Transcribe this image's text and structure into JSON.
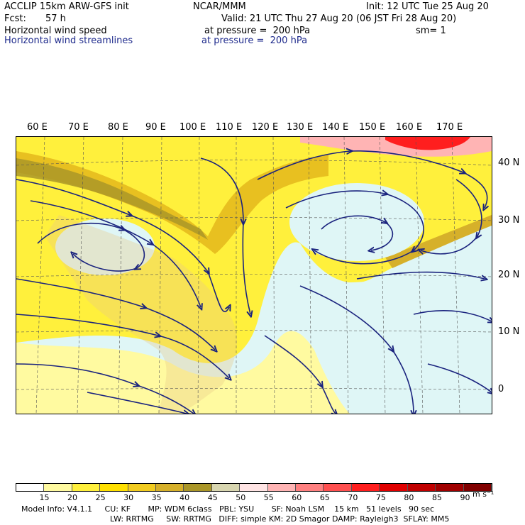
{
  "header": {
    "model": "ACCLIP 15km ARW-GFS init",
    "org": "NCAR/MMM",
    "init": "Init: 12 UTC Tue 25 Aug 20",
    "fcst_label": "Fcst:",
    "fcst_value": "57 h",
    "valid": "Valid: 21 UTC Thu 27 Aug 20 (06 JST Fri 28 Aug 20)",
    "field1_name": "Horizontal wind speed",
    "field1_level": "at pressure =  200 hPa",
    "field1_sm": "sm= 1",
    "field2_name": "Horizontal wind streamlines",
    "field2_level": "at pressure =  200 hPa"
  },
  "map": {
    "lon_labels": [
      "60 E",
      "70 E",
      "80 E",
      "90 E",
      "100 E",
      "110 E",
      "120 E",
      "130 E",
      "140 E",
      "150 E",
      "160 E",
      "170 E"
    ],
    "lat_labels": [
      "40 N",
      "30 N",
      "20 N",
      "10 N",
      "0"
    ]
  },
  "colorbar": {
    "labels": [
      "15",
      "20",
      "25",
      "30",
      "35",
      "40",
      "45",
      "50",
      "55",
      "60",
      "65",
      "70",
      "75",
      "80",
      "85",
      "90"
    ],
    "unit": "m s⁻¹",
    "colors": [
      "#ffffff",
      "#fffaa0",
      "#fff03c",
      "#ffe000",
      "#f2cc20",
      "#d6b02a",
      "#aa9628",
      "#d8d6b0",
      "#ffe4e4",
      "#ffb4b4",
      "#ff8080",
      "#ff5050",
      "#ff1e1e",
      "#e00000",
      "#c00000",
      "#a00000",
      "#800000"
    ]
  },
  "footer": {
    "line1": "Model Info: V4.1.1     CU: KF       MP: WDM 6class   PBL: YSU       SF: Noah LSM    15 km   51 levels   90 sec",
    "line2": "LW: RRTMG     SW: RRTMG   DIFF: simple KM: 2D Smagor DAMP: Rayleigh3  SFLAY: MM5"
  }
}
